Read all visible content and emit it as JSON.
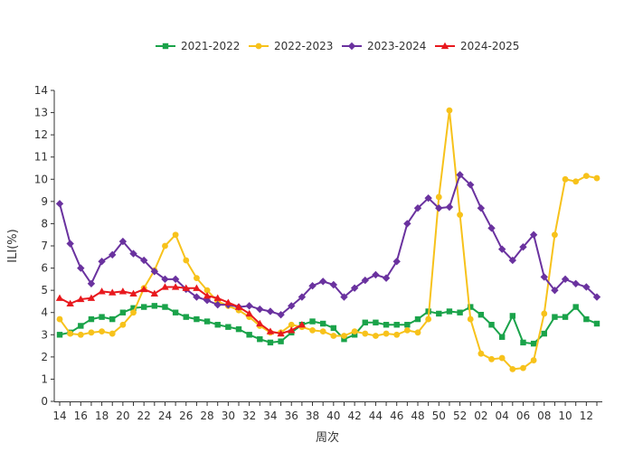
{
  "chart_data": {
    "type": "line",
    "title": "",
    "xlabel": "周次",
    "ylabel": "ILI(%)",
    "ylim": [
      0,
      14
    ],
    "yticks": [
      0,
      1,
      2,
      3,
      4,
      5,
      6,
      7,
      8,
      9,
      10,
      11,
      12,
      13,
      14
    ],
    "categories": [
      "14",
      "15",
      "16",
      "17",
      "18",
      "19",
      "20",
      "21",
      "22",
      "23",
      "24",
      "25",
      "26",
      "27",
      "28",
      "29",
      "30",
      "31",
      "32",
      "33",
      "34",
      "35",
      "36",
      "37",
      "38",
      "39",
      "40",
      "41",
      "42",
      "43",
      "44",
      "45",
      "46",
      "47",
      "48",
      "49",
      "50",
      "51",
      "52",
      "01",
      "02",
      "03",
      "04",
      "05",
      "06",
      "07",
      "08",
      "09",
      "10",
      "11",
      "12",
      "13"
    ],
    "x_tick_labels": [
      "14",
      "16",
      "18",
      "20",
      "22",
      "24",
      "26",
      "28",
      "30",
      "32",
      "34",
      "36",
      "38",
      "40",
      "42",
      "44",
      "46",
      "48",
      "50",
      "52",
      "02",
      "04",
      "06",
      "08",
      "10",
      "12"
    ],
    "grid": false,
    "legend_position": "top",
    "series": [
      {
        "name": "2021-2022",
        "color": "#1aa34a",
        "marker": "square",
        "values": [
          3.0,
          3.1,
          3.4,
          3.7,
          3.8,
          3.7,
          4.0,
          4.2,
          4.25,
          4.3,
          4.25,
          4.0,
          3.8,
          3.7,
          3.6,
          3.45,
          3.35,
          3.25,
          3.0,
          2.8,
          2.65,
          2.7,
          3.1,
          3.45,
          3.6,
          3.5,
          3.3,
          2.8,
          3.0,
          3.55,
          3.55,
          3.45,
          3.45,
          3.45,
          3.7,
          4.05,
          3.95,
          4.05,
          4.0,
          4.25,
          3.9,
          3.45,
          2.9,
          3.85,
          2.65,
          2.6,
          3.05,
          3.8,
          3.8,
          4.25,
          3.7,
          3.5
        ]
      },
      {
        "name": "2022-2023",
        "color": "#f7c21b",
        "marker": "circle",
        "values": [
          3.7,
          3.05,
          3.0,
          3.1,
          3.15,
          3.05,
          3.45,
          4.0,
          5.1,
          5.9,
          7.0,
          7.5,
          6.35,
          5.55,
          5.0,
          4.5,
          4.3,
          4.1,
          3.8,
          3.4,
          3.1,
          3.1,
          3.45,
          3.35,
          3.2,
          3.15,
          2.95,
          2.95,
          3.15,
          3.05,
          2.95,
          3.05,
          3.0,
          3.2,
          3.1,
          3.7,
          9.2,
          13.1,
          8.4,
          3.7,
          2.15,
          1.9,
          1.95,
          1.45,
          1.5,
          1.85,
          3.95,
          7.5,
          10.0,
          9.9,
          10.15,
          10.05
        ]
      },
      {
        "name": "2023-2024",
        "color": "#6a329f",
        "marker": "diamond",
        "values": [
          8.9,
          7.1,
          6.0,
          5.3,
          6.3,
          6.6,
          7.2,
          6.65,
          6.35,
          5.85,
          5.5,
          5.5,
          5.05,
          4.7,
          4.55,
          4.35,
          4.35,
          4.25,
          4.3,
          4.15,
          4.05,
          3.9,
          4.3,
          4.7,
          5.2,
          5.4,
          5.25,
          4.7,
          5.1,
          5.45,
          5.7,
          5.55,
          6.3,
          8.0,
          8.7,
          9.15,
          8.7,
          8.75,
          10.2,
          9.75,
          8.7,
          7.8,
          6.85,
          6.35,
          6.95,
          7.5,
          5.6,
          5.0,
          5.5,
          5.3,
          5.15,
          4.7
        ]
      },
      {
        "name": "2024-2025",
        "color": "#e8191e",
        "marker": "triangle",
        "values": [
          4.65,
          4.4,
          4.6,
          4.65,
          4.95,
          4.9,
          4.95,
          4.85,
          5.05,
          4.85,
          5.15,
          5.15,
          5.1,
          5.1,
          4.75,
          4.65,
          4.45,
          4.25,
          3.95,
          3.5,
          3.15,
          3.05,
          3.2,
          3.45,
          null,
          null,
          null,
          null,
          null,
          null,
          null,
          null,
          null,
          null,
          null,
          null,
          null,
          null,
          null,
          null,
          null,
          null,
          null,
          null,
          null,
          null,
          null,
          null,
          null,
          null,
          null,
          null
        ]
      }
    ]
  }
}
